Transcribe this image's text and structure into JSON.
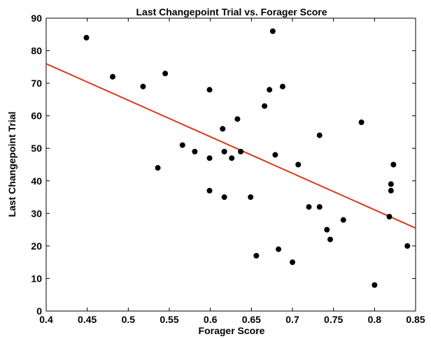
{
  "chart_data": {
    "type": "scatter",
    "title": "Last Changepoint Trial vs. Forager Score",
    "xlabel": "Forager Score",
    "ylabel": "Last Changepoint Trial",
    "xlim": [
      0.4,
      0.85
    ],
    "ylim": [
      0,
      90
    ],
    "xticks": [
      "0.4",
      "0.45",
      "0.5",
      "0.55",
      "0.6",
      "0.65",
      "0.7",
      "0.75",
      "0.8",
      "0.85"
    ],
    "yticks": [
      "0",
      "10",
      "20",
      "30",
      "40",
      "50",
      "60",
      "70",
      "80",
      "90"
    ],
    "grid": false,
    "legend": "none",
    "marker_color": "#000000",
    "fit_line_color": "#d63a1e",
    "points": [
      {
        "x": 0.449,
        "y": 84
      },
      {
        "x": 0.481,
        "y": 72
      },
      {
        "x": 0.518,
        "y": 69
      },
      {
        "x": 0.536,
        "y": 44
      },
      {
        "x": 0.545,
        "y": 73
      },
      {
        "x": 0.566,
        "y": 51
      },
      {
        "x": 0.581,
        "y": 49
      },
      {
        "x": 0.599,
        "y": 68
      },
      {
        "x": 0.599,
        "y": 47
      },
      {
        "x": 0.599,
        "y": 37
      },
      {
        "x": 0.615,
        "y": 56
      },
      {
        "x": 0.617,
        "y": 49
      },
      {
        "x": 0.617,
        "y": 35
      },
      {
        "x": 0.626,
        "y": 47
      },
      {
        "x": 0.633,
        "y": 59
      },
      {
        "x": 0.637,
        "y": 49
      },
      {
        "x": 0.649,
        "y": 35
      },
      {
        "x": 0.656,
        "y": 17
      },
      {
        "x": 0.666,
        "y": 63
      },
      {
        "x": 0.672,
        "y": 68
      },
      {
        "x": 0.676,
        "y": 86
      },
      {
        "x": 0.679,
        "y": 48
      },
      {
        "x": 0.683,
        "y": 19
      },
      {
        "x": 0.688,
        "y": 69
      },
      {
        "x": 0.7,
        "y": 15
      },
      {
        "x": 0.707,
        "y": 45
      },
      {
        "x": 0.72,
        "y": 32
      },
      {
        "x": 0.733,
        "y": 54
      },
      {
        "x": 0.733,
        "y": 32
      },
      {
        "x": 0.742,
        "y": 25
      },
      {
        "x": 0.746,
        "y": 22
      },
      {
        "x": 0.762,
        "y": 28
      },
      {
        "x": 0.784,
        "y": 58
      },
      {
        "x": 0.8,
        "y": 8
      },
      {
        "x": 0.818,
        "y": 29
      },
      {
        "x": 0.82,
        "y": 39
      },
      {
        "x": 0.82,
        "y": 37
      },
      {
        "x": 0.823,
        "y": 45
      },
      {
        "x": 0.84,
        "y": 20
      }
    ],
    "fit_line": {
      "x": [
        0.4,
        0.85
      ],
      "y": [
        76,
        25.5
      ]
    }
  }
}
